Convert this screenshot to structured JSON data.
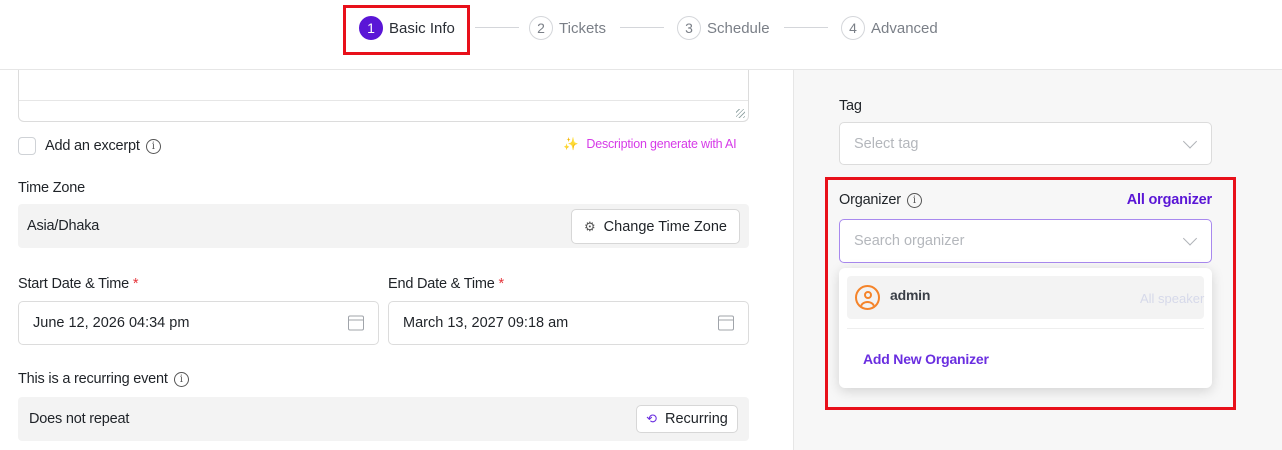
{
  "stepper": {
    "steps": [
      {
        "num": "1",
        "label": "Basic Info",
        "active": true
      },
      {
        "num": "2",
        "label": "Tickets"
      },
      {
        "num": "3",
        "label": "Schedule"
      },
      {
        "num": "4",
        "label": "Advanced"
      }
    ]
  },
  "form": {
    "excerpt_label": "Add an excerpt",
    "ai_link": "Description generate with AI",
    "timezone": {
      "label": "Time Zone",
      "value": "Asia/Dhaka",
      "button": "Change Time Zone"
    },
    "start": {
      "label": "Start Date & Time",
      "required": "*",
      "value": "June 12, 2026 04:34 pm"
    },
    "end": {
      "label": "End Date & Time",
      "required": "*",
      "value": "March 13, 2027 09:18 am"
    },
    "recurring": {
      "label": "This is a recurring event",
      "value": "Does not repeat",
      "button": "Recurring"
    }
  },
  "sidebar": {
    "tag": {
      "label": "Tag",
      "placeholder": "Select tag"
    },
    "organizer": {
      "label": "Organizer",
      "link": "All organizer",
      "placeholder": "Search organizer",
      "options": [
        {
          "name": "admin"
        }
      ],
      "add_label": "Add New Organizer"
    },
    "speaker": {
      "link": "All speaker"
    }
  },
  "colors": {
    "accent": "#5a16d6",
    "link": "#6a2ee0",
    "ai": "#d63ae8",
    "highlight": "#e8101a",
    "avatar": "#f5842a"
  }
}
